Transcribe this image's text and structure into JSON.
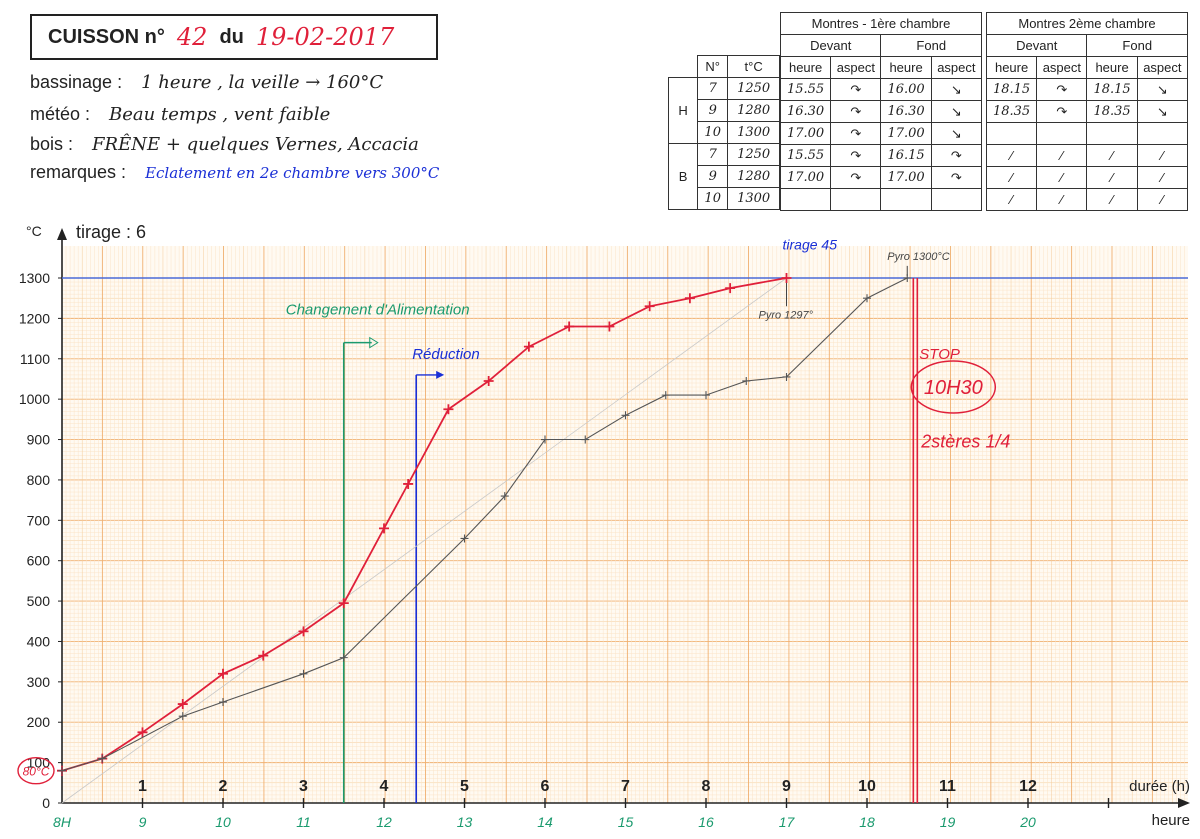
{
  "header": {
    "cuisson_label": "CUISSON n°",
    "cuisson_number": "42",
    "du_label": "du",
    "date": "19-02-2017"
  },
  "info": [
    {
      "label": "bassinage :",
      "value": "1 heure , la veille → 160°C"
    },
    {
      "label": "météo :",
      "value": "Beau temps , vent faible"
    },
    {
      "label": "bois :",
      "value": "FRÊNE + quelques Vernes, Accacia"
    },
    {
      "label": "remarques :",
      "value": "Eclatement en 2e chambre vers 300°C"
    }
  ],
  "montres": {
    "chamber1_title": "Montres - 1ère chambre",
    "chamber2_title": "Montres 2ème chambre",
    "devant": "Devant",
    "fond": "Fond",
    "heure": "heure",
    "aspect": "aspect",
    "col_no": "N°",
    "col_temp": "t°C",
    "group_h": "H",
    "group_b": "B",
    "rows": [
      {
        "n": "7",
        "t": "1250",
        "c1_devant": "15.55",
        "c1_fond": "16.00",
        "c2_devant": "18.15",
        "c2_fond": "18.15"
      },
      {
        "n": "9",
        "t": "1280",
        "c1_devant": "16.30",
        "c1_fond": "16.30",
        "c2_devant": "18.35",
        "c2_fond": "18.35"
      },
      {
        "n": "10",
        "t": "1300",
        "c1_devant": "17.00",
        "c1_fond": "17.00",
        "c2_devant": "",
        "c2_fond": ""
      },
      {
        "n": "7",
        "t": "1250",
        "c1_devant": "15.55",
        "c1_fond": "16.15",
        "c2_devant": "",
        "c2_fond": ""
      },
      {
        "n": "9",
        "t": "1280",
        "c1_devant": "17.00",
        "c1_fond": "17.00",
        "c2_devant": "",
        "c2_fond": ""
      },
      {
        "n": "10",
        "t": "1300",
        "c1_devant": "",
        "c1_fond": "",
        "c2_devant": "",
        "c2_fond": ""
      }
    ]
  },
  "chart_data": {
    "type": "line",
    "ylabel": "°C",
    "xlabel": "durée (h)",
    "xlabel2": "heure",
    "tirage_label": "tirage : 6",
    "xlim": [
      -0.3,
      13.7
    ],
    "ylim": [
      0,
      1300
    ],
    "yticks": [
      0,
      100,
      200,
      300,
      400,
      500,
      600,
      700,
      800,
      900,
      1000,
      1100,
      1200,
      1300
    ],
    "duration_ticks": [
      "1",
      "2",
      "3",
      "4",
      "5",
      "6",
      "7",
      "8",
      "9",
      "10",
      "11",
      "12"
    ],
    "hour_ticks": [
      {
        "x": -0.3,
        "label": "8H"
      },
      {
        "x": 0.7,
        "label": "9"
      },
      {
        "x": 1.7,
        "label": "10"
      },
      {
        "x": 2.7,
        "label": "11"
      },
      {
        "x": 3.7,
        "label": "12"
      },
      {
        "x": 4.7,
        "label": "13"
      },
      {
        "x": 5.7,
        "label": "14"
      },
      {
        "x": 6.7,
        "label": "15"
      },
      {
        "x": 7.7,
        "label": "16"
      },
      {
        "x": 8.7,
        "label": "17"
      },
      {
        "x": 9.7,
        "label": "18"
      },
      {
        "x": 10.7,
        "label": "19"
      },
      {
        "x": 11.7,
        "label": "20"
      }
    ],
    "target_temperature": 1300,
    "series": [
      {
        "color": "#e0203a",
        "points": [
          {
            "x": -0.3,
            "y": 80
          },
          {
            "x": 0.2,
            "y": 110
          },
          {
            "x": 0.7,
            "y": 175
          },
          {
            "x": 1.2,
            "y": 245
          },
          {
            "x": 1.7,
            "y": 320
          },
          {
            "x": 2.2,
            "y": 365
          },
          {
            "x": 2.7,
            "y": 425
          },
          {
            "x": 3.2,
            "y": 495
          },
          {
            "x": 3.7,
            "y": 680
          },
          {
            "x": 4.0,
            "y": 790
          },
          {
            "x": 4.5,
            "y": 975
          },
          {
            "x": 5.0,
            "y": 1045
          },
          {
            "x": 5.5,
            "y": 1130
          },
          {
            "x": 6.0,
            "y": 1180
          },
          {
            "x": 6.5,
            "y": 1180
          },
          {
            "x": 7.0,
            "y": 1230
          },
          {
            "x": 7.5,
            "y": 1250
          },
          {
            "x": 8.0,
            "y": 1275
          },
          {
            "x": 8.7,
            "y": 1300
          }
        ]
      },
      {
        "color": "#555555",
        "points": [
          {
            "x": -0.3,
            "y": 80
          },
          {
            "x": 0.2,
            "y": 110
          },
          {
            "x": 1.2,
            "y": 215
          },
          {
            "x": 1.7,
            "y": 250
          },
          {
            "x": 2.7,
            "y": 320
          },
          {
            "x": 3.2,
            "y": 360
          },
          {
            "x": 4.7,
            "y": 655
          },
          {
            "x": 5.2,
            "y": 760
          },
          {
            "x": 5.7,
            "y": 900
          },
          {
            "x": 6.2,
            "y": 900
          },
          {
            "x": 6.7,
            "y": 960
          },
          {
            "x": 7.2,
            "y": 1010
          },
          {
            "x": 7.7,
            "y": 1010
          },
          {
            "x": 8.2,
            "y": 1045
          },
          {
            "x": 8.7,
            "y": 1055
          },
          {
            "x": 9.7,
            "y": 1250
          },
          {
            "x": 10.2,
            "y": 1300
          }
        ]
      }
    ],
    "annotations": {
      "alimentation": {
        "x": 3.2,
        "label": "Changement d'Alimentation",
        "color": "#1a9a6e"
      },
      "reduction": {
        "x": 4.1,
        "label": "Réduction",
        "color": "#1a2fd6"
      },
      "stop": {
        "x": 10.3,
        "label": "STOP",
        "time": "10H30",
        "note": "2stères 1/4",
        "color": "#e0203a"
      },
      "tirage45": {
        "x": 8.7,
        "label": "tirage 45",
        "color": "#1a2fd6"
      },
      "pyro1297": {
        "x": 8.7,
        "label": "Pyro 1297°"
      },
      "pyro1300": {
        "x": 10.2,
        "label": "Pyro 1300°C"
      },
      "start": {
        "label": "80°C"
      }
    }
  }
}
